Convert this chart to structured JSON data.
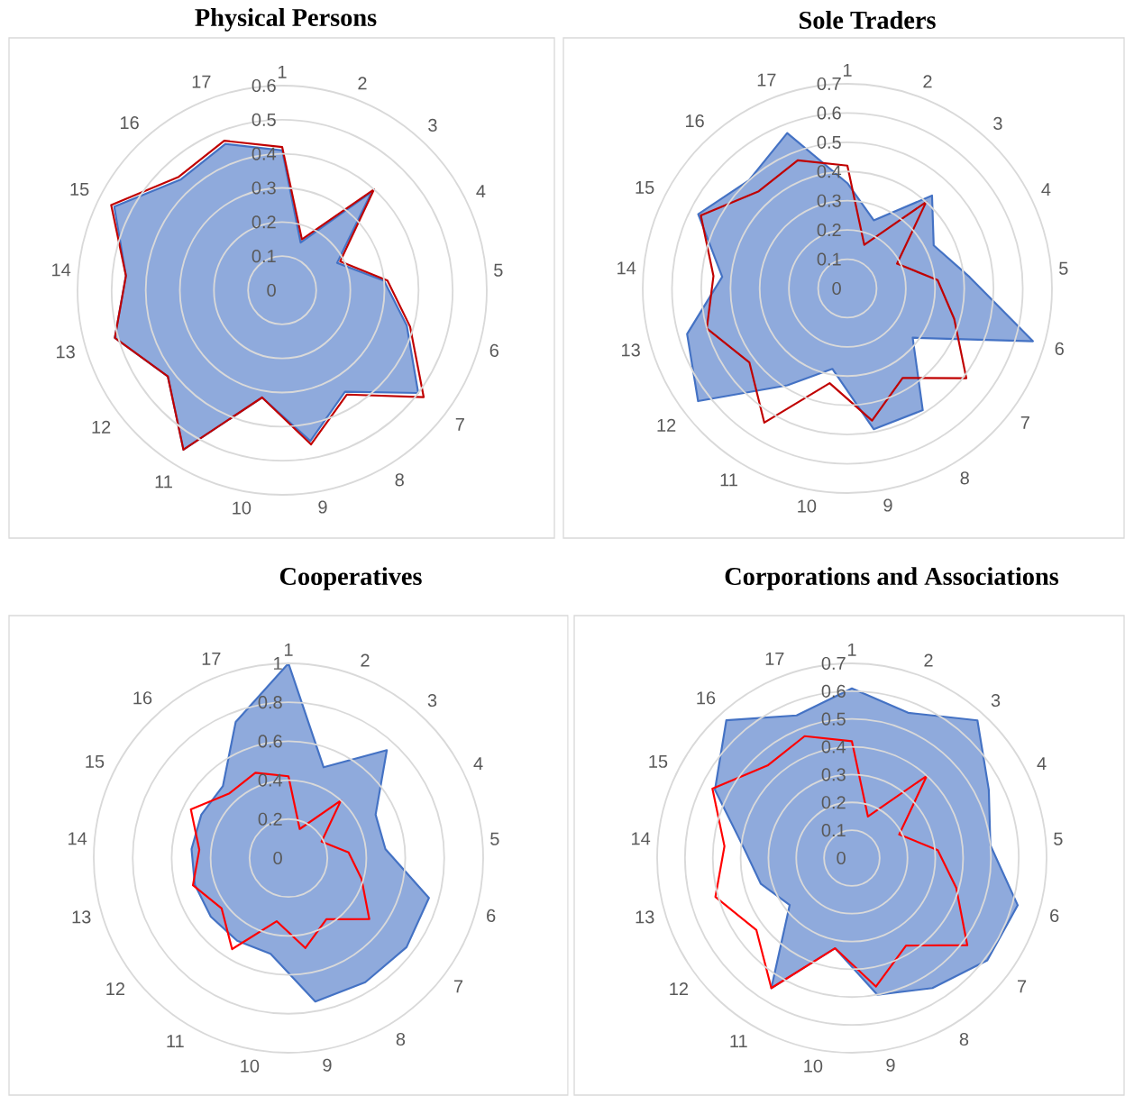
{
  "chart_data": [
    {
      "type": "radar",
      "title": "Physical Persons",
      "categories": [
        "1",
        "2",
        "3",
        "4",
        "5",
        "6",
        "7",
        "8",
        "9",
        "10",
        "11",
        "12",
        "13",
        "14",
        "15",
        "16",
        "17"
      ],
      "ylim": [
        0,
        0.6
      ],
      "yticks": [
        0,
        0.1,
        0.2,
        0.3,
        0.4,
        0.5,
        0.6
      ],
      "grid": true,
      "series": [
        {
          "color": "#4472c4",
          "values": [
            0.41,
            0.15,
            0.39,
            0.18,
            0.3,
            0.38,
            0.5,
            0.35,
            0.45,
            0.32,
            0.55,
            0.42,
            0.51,
            0.46,
            0.55,
            0.44,
            0.46
          ]
        },
        {
          "color": "#c00000",
          "values": [
            0.42,
            0.16,
            0.4,
            0.19,
            0.31,
            0.39,
            0.52,
            0.36,
            0.46,
            0.32,
            0.55,
            0.42,
            0.51,
            0.46,
            0.56,
            0.45,
            0.47
          ]
        }
      ]
    },
    {
      "type": "radar",
      "title": "Sole Traders",
      "categories": [
        "1",
        "2",
        "3",
        "4",
        "5",
        "6",
        "7",
        "8",
        "9",
        "10",
        "11",
        "12",
        "13",
        "14",
        "15",
        "16",
        "17"
      ],
      "ylim": [
        0,
        0.7
      ],
      "yticks": [
        0,
        0.1,
        0.2,
        0.3,
        0.4,
        0.5,
        0.6,
        0.7
      ],
      "grid": true,
      "series": [
        {
          "color": "#4472c4",
          "values": [
            0.36,
            0.25,
            0.43,
            0.33,
            0.42,
            0.66,
            0.28,
            0.49,
            0.49,
            0.28,
            0.39,
            0.64,
            0.57,
            0.43,
            0.57,
            0.5,
            0.57
          ]
        },
        {
          "color": "#c00000",
          "values": [
            0.42,
            0.16,
            0.4,
            0.19,
            0.31,
            0.38,
            0.51,
            0.36,
            0.46,
            0.33,
            0.54,
            0.42,
            0.5,
            0.46,
            0.56,
            0.45,
            0.47
          ]
        }
      ]
    },
    {
      "type": "radar",
      "title": "Cooperatives",
      "categories": [
        "1",
        "2",
        "3",
        "4",
        "5",
        "6",
        "7",
        "8",
        "9",
        "10",
        "11",
        "12",
        "13",
        "14",
        "15",
        "16",
        "17"
      ],
      "ylim": [
        0,
        1
      ],
      "yticks": [
        0,
        0.2,
        0.4,
        0.6,
        0.8,
        1
      ],
      "grid": true,
      "series": [
        {
          "color": "#4472c4",
          "values": [
            1.0,
            0.5,
            0.75,
            0.5,
            0.5,
            0.75,
            0.76,
            0.75,
            0.75,
            0.5,
            0.5,
            0.5,
            0.5,
            0.5,
            0.5,
            0.5,
            0.75
          ]
        },
        {
          "color": "#ff0000",
          "values": [
            0.42,
            0.16,
            0.4,
            0.19,
            0.31,
            0.39,
            0.52,
            0.37,
            0.47,
            0.33,
            0.55,
            0.43,
            0.51,
            0.46,
            0.56,
            0.45,
            0.47
          ]
        }
      ]
    },
    {
      "type": "radar",
      "title": "Corporations and Associations",
      "categories": [
        "1",
        "2",
        "3",
        "4",
        "5",
        "6",
        "7",
        "8",
        "9",
        "10",
        "11",
        "12",
        "13",
        "14",
        "15",
        "16",
        "17"
      ],
      "ylim": [
        0,
        0.7
      ],
      "yticks": [
        0,
        0.1,
        0.2,
        0.3,
        0.4,
        0.5,
        0.6,
        0.7
      ],
      "grid": true,
      "series": [
        {
          "color": "#4472c4",
          "values": [
            0.61,
            0.56,
            0.67,
            0.55,
            0.5,
            0.62,
            0.61,
            0.55,
            0.5,
            0.33,
            0.55,
            0.28,
            0.34,
            0.39,
            0.55,
            0.67,
            0.55
          ]
        },
        {
          "color": "#ff0000",
          "values": [
            0.42,
            0.16,
            0.4,
            0.19,
            0.31,
            0.39,
            0.52,
            0.37,
            0.47,
            0.33,
            0.55,
            0.43,
            0.51,
            0.46,
            0.56,
            0.45,
            0.47
          ]
        }
      ]
    }
  ]
}
